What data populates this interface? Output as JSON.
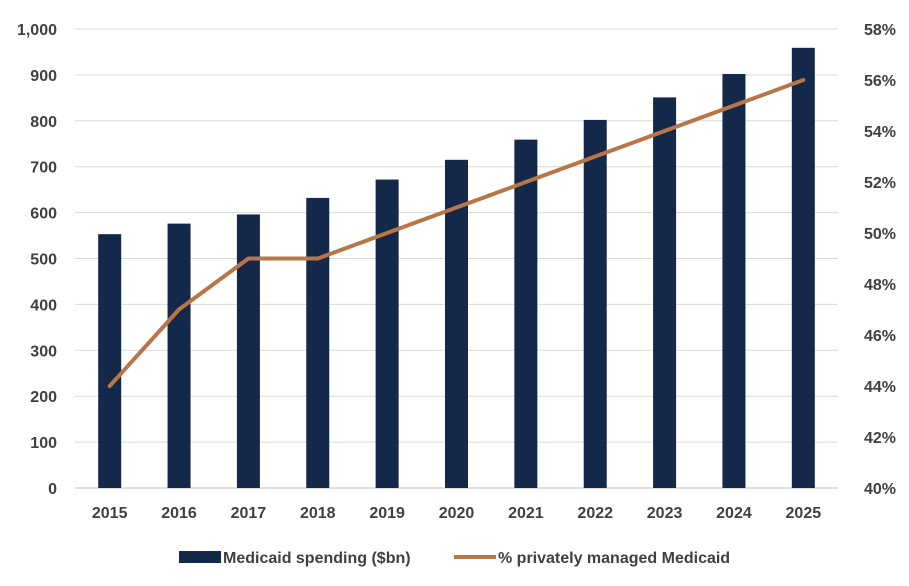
{
  "chart_data": {
    "type": "bar+line",
    "categories": [
      "2015",
      "2016",
      "2017",
      "2018",
      "2019",
      "2020",
      "2021",
      "2022",
      "2023",
      "2024",
      "2025"
    ],
    "series": [
      {
        "name": "Medicaid spending ($bn)",
        "type": "bar",
        "axis": "left",
        "color": "#14294a",
        "values": [
          553,
          576,
          596,
          632,
          672,
          715,
          759,
          802,
          851,
          902,
          959
        ]
      },
      {
        "name": "% privately managed Medicaid",
        "type": "line",
        "axis": "right",
        "color": "#b87547",
        "values": [
          44,
          47,
          49,
          49,
          50,
          51,
          52,
          53,
          54,
          55,
          56
        ]
      }
    ],
    "left_axis": {
      "ylim": [
        0,
        1000
      ],
      "ticks": [
        0,
        100,
        200,
        300,
        400,
        500,
        600,
        700,
        800,
        900,
        1000
      ],
      "tick_labels": [
        "0",
        "100",
        "200",
        "300",
        "400",
        "500",
        "600",
        "700",
        "800",
        "900",
        "1,000"
      ]
    },
    "right_axis": {
      "ylim": [
        40,
        58
      ],
      "ticks": [
        40,
        42,
        44,
        46,
        48,
        50,
        52,
        54,
        56,
        58
      ],
      "tick_labels": [
        "40%",
        "42%",
        "44%",
        "46%",
        "48%",
        "50%",
        "52%",
        "54%",
        "56%",
        "58%"
      ]
    },
    "grid": true,
    "legend": "bottom-center"
  }
}
